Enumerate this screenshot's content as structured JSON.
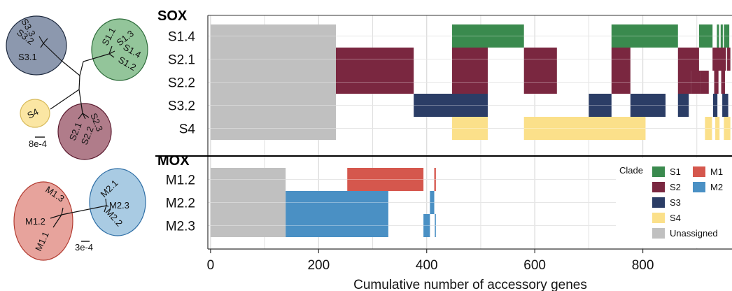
{
  "chart_data": {
    "type": "bar",
    "subtype": "timeline",
    "xlabel": "Cumulative number of accessory genes",
    "x_ticks": [
      0,
      200,
      400,
      600,
      800
    ],
    "xlim": [
      -5,
      965
    ],
    "grid": true,
    "groups": [
      {
        "name": "SOX",
        "rows": [
          "S1.4",
          "S2.1",
          "S2.2",
          "S3.2",
          "S4"
        ],
        "segments": [
          {
            "row": "S1.4",
            "clade": "Unassigned",
            "start": 0,
            "end": 232
          },
          {
            "row": "S2.1",
            "clade": "Unassigned",
            "start": 0,
            "end": 232
          },
          {
            "row": "S2.2",
            "clade": "Unassigned",
            "start": 0,
            "end": 232
          },
          {
            "row": "S3.2",
            "clade": "Unassigned",
            "start": 0,
            "end": 232
          },
          {
            "row": "S4",
            "clade": "Unassigned",
            "start": 0,
            "end": 232
          },
          {
            "row": "S2.1",
            "clade": "S2",
            "start": 232,
            "end": 376
          },
          {
            "row": "S2.2",
            "clade": "S2",
            "start": 232,
            "end": 376
          },
          {
            "row": "S3.2",
            "clade": "S3",
            "start": 376,
            "end": 513
          },
          {
            "row": "S1.4",
            "clade": "S1",
            "start": 447,
            "end": 580
          },
          {
            "row": "S2.1",
            "clade": "S2",
            "start": 447,
            "end": 513
          },
          {
            "row": "S2.2",
            "clade": "S2",
            "start": 447,
            "end": 513
          },
          {
            "row": "S4",
            "clade": "S4",
            "start": 447,
            "end": 513
          },
          {
            "row": "S4",
            "clade": "S4",
            "start": 580,
            "end": 805
          },
          {
            "row": "S2.1",
            "clade": "S2",
            "start": 580,
            "end": 641
          },
          {
            "row": "S2.2",
            "clade": "S2",
            "start": 580,
            "end": 641
          },
          {
            "row": "S3.2",
            "clade": "S3",
            "start": 700,
            "end": 742
          },
          {
            "row": "S1.4",
            "clade": "S1",
            "start": 742,
            "end": 865
          },
          {
            "row": "S2.1",
            "clade": "S2",
            "start": 742,
            "end": 777
          },
          {
            "row": "S2.2",
            "clade": "S2",
            "start": 742,
            "end": 777
          },
          {
            "row": "S3.2",
            "clade": "S3",
            "start": 777,
            "end": 842
          },
          {
            "row": "S3.2",
            "clade": "S3",
            "start": 865,
            "end": 885
          },
          {
            "row": "S2.1",
            "clade": "S2",
            "start": 865,
            "end": 904
          },
          {
            "row": "S2.2",
            "clade": "S2",
            "start": 865,
            "end": 889
          },
          {
            "row": "S2.2",
            "clade": "S2",
            "start": 889,
            "end": 906
          },
          {
            "row": "S1.4",
            "clade": "S1",
            "start": 904,
            "end": 929
          },
          {
            "row": "S4",
            "clade": "S4",
            "start": 915,
            "end": 928
          },
          {
            "row": "S4",
            "clade": "S4",
            "start": 934,
            "end": 942
          },
          {
            "row": "S2.1",
            "clade": "S2",
            "start": 929,
            "end": 954
          },
          {
            "row": "S2.2",
            "clade": "S2",
            "start": 906,
            "end": 922
          },
          {
            "row": "S2.2",
            "clade": "S2",
            "start": 932,
            "end": 940
          },
          {
            "row": "S2.2",
            "clade": "S2",
            "start": 945,
            "end": 952
          },
          {
            "row": "S3.2",
            "clade": "S3",
            "start": 930,
            "end": 938
          },
          {
            "row": "S3.2",
            "clade": "S3",
            "start": 947,
            "end": 958
          },
          {
            "row": "S1.4",
            "clade": "S1",
            "start": 937,
            "end": 941
          },
          {
            "row": "S1.4",
            "clade": "S1",
            "start": 944,
            "end": 948
          },
          {
            "row": "S1.4",
            "clade": "S1",
            "start": 950,
            "end": 960
          },
          {
            "row": "S2.1",
            "clade": "S2",
            "start": 956,
            "end": 962
          },
          {
            "row": "S4",
            "clade": "S4",
            "start": 950,
            "end": 962
          }
        ]
      },
      {
        "name": "MOX",
        "rows": [
          "M1.2",
          "M2.2",
          "M2.3"
        ],
        "segments": [
          {
            "row": "M1.2",
            "clade": "Unassigned",
            "start": 0,
            "end": 139
          },
          {
            "row": "M2.2",
            "clade": "Unassigned",
            "start": 0,
            "end": 139
          },
          {
            "row": "M2.3",
            "clade": "Unassigned",
            "start": 0,
            "end": 139
          },
          {
            "row": "M2.2",
            "clade": "M2",
            "start": 139,
            "end": 329
          },
          {
            "row": "M2.3",
            "clade": "M2",
            "start": 139,
            "end": 329
          },
          {
            "row": "M1.2",
            "clade": "M1",
            "start": 253,
            "end": 394
          },
          {
            "row": "M2.3",
            "clade": "M2",
            "start": 394,
            "end": 406
          },
          {
            "row": "M2.2",
            "clade": "M2",
            "start": 406,
            "end": 414
          },
          {
            "row": "M1.2",
            "clade": "M1",
            "start": 414,
            "end": 417
          },
          {
            "row": "M2.3",
            "clade": "M2",
            "start": 415,
            "end": 417
          }
        ]
      }
    ],
    "legend": {
      "title": "Clade",
      "position": "bottom-right",
      "entries": [
        {
          "label": "S1",
          "color": "#3a8a4e"
        },
        {
          "label": "S2",
          "color": "#7a2740"
        },
        {
          "label": "S3",
          "color": "#2b3d66"
        },
        {
          "label": "S4",
          "color": "#fbe08a"
        },
        {
          "label": "Unassigned",
          "color": "#c0c0c0"
        },
        {
          "label": "M1",
          "color": "#d5574d"
        },
        {
          "label": "M2",
          "color": "#4a90c4"
        }
      ]
    }
  },
  "trees": {
    "sox": {
      "scale_label": "8e-4",
      "clusters": [
        {
          "id": "S3",
          "color": "#8c98ae",
          "labels": [
            "S3.3",
            "S3.2",
            "S3.1"
          ]
        },
        {
          "id": "S1",
          "color": "#93c59a",
          "labels": [
            "S1.1",
            "S1.3",
            "S1.4",
            "S1.2"
          ]
        },
        {
          "id": "S4",
          "color": "#fbe6a3",
          "labels": [
            "S4"
          ]
        },
        {
          "id": "S2",
          "color": "#b07c8a",
          "labels": [
            "S2.1",
            "S2.2",
            "S2.3"
          ]
        }
      ]
    },
    "mox": {
      "scale_label": "3e-4",
      "clusters": [
        {
          "id": "M1",
          "color": "#e7a39c",
          "labels": [
            "M1.3",
            "M1.2",
            "M1.1"
          ]
        },
        {
          "id": "M2",
          "color": "#a9cbe3",
          "labels": [
            "M2.1",
            "M2.3",
            "M2.2"
          ]
        }
      ]
    }
  }
}
